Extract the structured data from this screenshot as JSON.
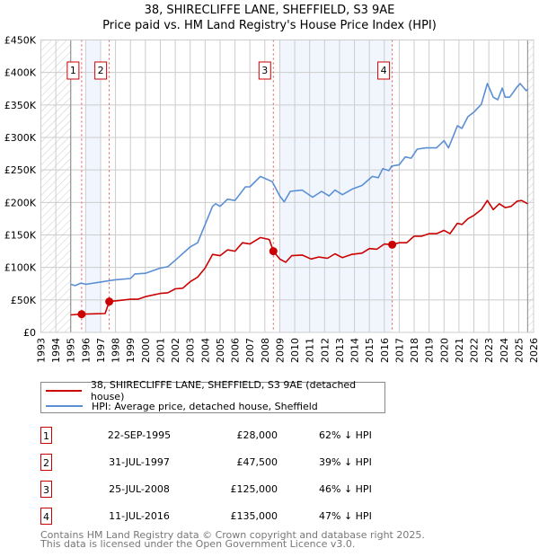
{
  "chart_data": {
    "type": "line",
    "title": "38, SHIRECLIFFE LANE, SHEFFIELD, S3 9AE",
    "subtitle": "Price paid vs. HM Land Registry's House Price Index (HPI)",
    "xlim": [
      1993,
      2026
    ],
    "ylim": [
      0,
      450000
    ],
    "grid": true,
    "x_ticks": [
      "1993",
      "1994",
      "1995",
      "1996",
      "1997",
      "1998",
      "1999",
      "2000",
      "2001",
      "2002",
      "2003",
      "2004",
      "2005",
      "2006",
      "2007",
      "2008",
      "2009",
      "2010",
      "2011",
      "2012",
      "2013",
      "2014",
      "2015",
      "2016",
      "2017",
      "2018",
      "2019",
      "2020",
      "2021",
      "2022",
      "2023",
      "2024",
      "2025",
      "2026"
    ],
    "y_ticks": [
      {
        "v": 0,
        "label": "£0"
      },
      {
        "v": 50000,
        "label": "£50K"
      },
      {
        "v": 100000,
        "label": "£100K"
      },
      {
        "v": 150000,
        "label": "£150K"
      },
      {
        "v": 200000,
        "label": "£200K"
      },
      {
        "v": 250000,
        "label": "£250K"
      },
      {
        "v": 300000,
        "label": "£300K"
      },
      {
        "v": 350000,
        "label": "£350K"
      },
      {
        "v": 400000,
        "label": "£400K"
      },
      {
        "v": 450000,
        "label": "£450K"
      }
    ],
    "data_range": [
      1995,
      2025.6
    ],
    "shaded_ranges": [
      [
        1996,
        1997
      ],
      [
        2009,
        2016.53
      ]
    ],
    "series": [
      {
        "name": "38, SHIRECLIFFE LANE, SHEFFIELD, S3 9AE (detached house)",
        "color": "#cc0000",
        "x": [
          1995,
          1995.73,
          1997.3,
          1997.58,
          1998,
          1999,
          1999.5,
          2000,
          2001,
          2001.5,
          2002,
          2002.5,
          2003,
          2003.5,
          2004,
          2004.5,
          2005,
          2005.5,
          2006,
          2006.5,
          2007,
          2007.7,
          2008.3,
          2008.57,
          2009,
          2009.4,
          2009.8,
          2010.5,
          2011.1,
          2011.6,
          2012.2,
          2012.7,
          2013.2,
          2013.8,
          2014.5,
          2015,
          2015.5,
          2016,
          2016.53,
          2017,
          2017.5,
          2018,
          2018.5,
          2019,
          2019.5,
          2020,
          2020.4,
          2020.9,
          2021.2,
          2021.6,
          2022,
          2022.5,
          2022.9,
          2023.3,
          2023.7,
          2024.1,
          2024.5,
          2024.9,
          2025.2,
          2025.6
        ],
        "y": [
          27000,
          28000,
          29000,
          47500,
          48500,
          51000,
          51000,
          55000,
          60000,
          61000,
          67000,
          68000,
          78000,
          85000,
          99000,
          120000,
          118000,
          127000,
          125000,
          138000,
          136000,
          146000,
          143000,
          125000,
          113000,
          108000,
          118000,
          119000,
          113000,
          116000,
          114000,
          121000,
          115000,
          120000,
          122000,
          129000,
          128000,
          136000,
          135000,
          138000,
          138000,
          148000,
          148000,
          152000,
          152000,
          157000,
          152000,
          168000,
          166000,
          175000,
          180000,
          189000,
          203000,
          189000,
          198000,
          192000,
          194000,
          202000,
          203000,
          198000
        ]
      },
      {
        "name": "HPI: Average price, detached house, Sheffield",
        "color": "#5b8fd4",
        "x": [
          1995,
          1995.3,
          1995.7,
          1996,
          1997,
          1998,
          1999,
          1999.3,
          2000,
          2001,
          2001.5,
          2002,
          2003,
          2003.5,
          2004,
          2004.5,
          2004.7,
          2005,
          2005.5,
          2006,
          2006.7,
          2007,
          2007.7,
          2008.5,
          2009,
          2009.3,
          2009.7,
          2010.5,
          2011.2,
          2011.8,
          2012.3,
          2012.7,
          2013.2,
          2013.9,
          2014.5,
          2015.2,
          2015.6,
          2015.9,
          2016.3,
          2016.5,
          2017,
          2017.4,
          2017.8,
          2018.2,
          2018.8,
          2019.5,
          2020,
          2020.3,
          2020.9,
          2021.2,
          2021.6,
          2022,
          2022.5,
          2022.9,
          2023.3,
          2023.6,
          2023.9,
          2024.1,
          2024.4,
          2024.9,
          2025.1,
          2025.5,
          2025.6
        ],
        "y": [
          74000,
          72000,
          76000,
          74000,
          77500,
          81000,
          83000,
          90000,
          91000,
          99000,
          101000,
          111000,
          131500,
          138000,
          166000,
          194000,
          198000,
          194000,
          205000,
          203000,
          224000,
          224000,
          240000,
          232000,
          210000,
          201000,
          217000,
          219000,
          208000,
          217000,
          210000,
          219000,
          212000,
          221000,
          226000,
          240000,
          238000,
          252000,
          249000,
          256000,
          258000,
          270000,
          268000,
          282000,
          284000,
          284000,
          295000,
          284000,
          318000,
          314000,
          332000,
          339000,
          351000,
          383000,
          362000,
          358000,
          376000,
          362000,
          362000,
          378000,
          383000,
          372000,
          374000
        ]
      }
    ],
    "annotations": [
      {
        "label": "1",
        "x": 1995.73,
        "y": 28000
      },
      {
        "label": "2",
        "x": 1997.58,
        "y": 47500
      },
      {
        "label": "3",
        "x": 2008.57,
        "y": 125000
      },
      {
        "label": "4",
        "x": 2016.53,
        "y": 135000
      }
    ]
  },
  "legend": {
    "property": "38, SHIRECLIFFE LANE, SHEFFIELD, S3 9AE (detached house)",
    "hpi": "HPI: Average price, detached house, Sheffield"
  },
  "transactions": [
    {
      "num": "1",
      "date": "22-SEP-1995",
      "price": "£28,000",
      "hpi": "62% ↓ HPI"
    },
    {
      "num": "2",
      "date": "31-JUL-1997",
      "price": "£47,500",
      "hpi": "39% ↓ HPI"
    },
    {
      "num": "3",
      "date": "25-JUL-2008",
      "price": "£125,000",
      "hpi": "46% ↓ HPI"
    },
    {
      "num": "4",
      "date": "11-JUL-2016",
      "price": "£135,000",
      "hpi": "47% ↓ HPI"
    }
  ],
  "footer": {
    "line1": "Contains HM Land Registry data © Crown copyright and database right 2025.",
    "line2": "This data is licensed under the Open Government Licence v3.0."
  }
}
